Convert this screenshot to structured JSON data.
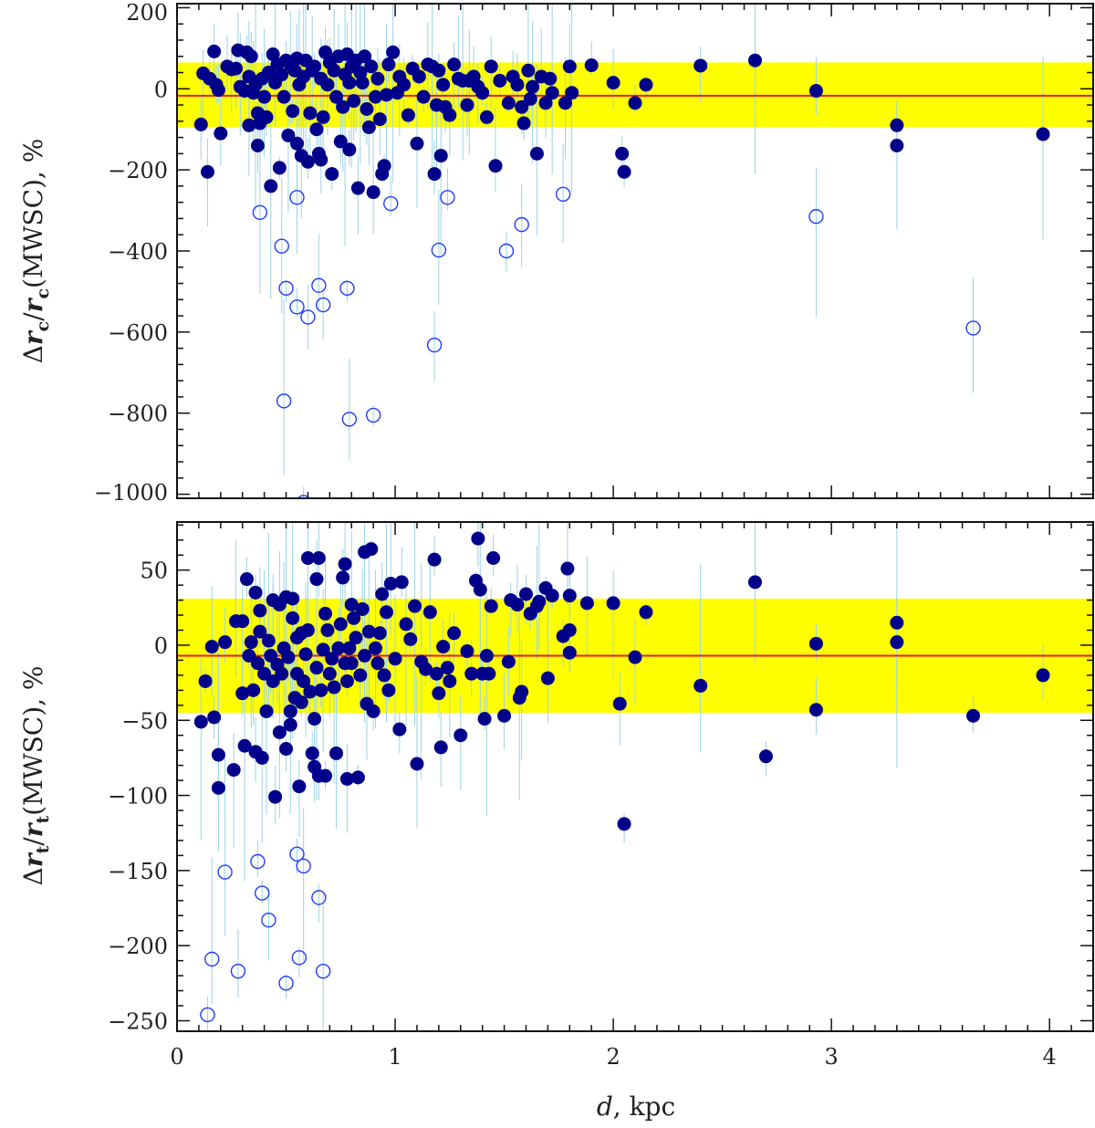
{
  "colors": {
    "band": "#ffff00",
    "mean_line": "#e8192c",
    "filled": "#00008b",
    "open": "#1e3cff",
    "errorbar": "#9cd3e6",
    "axes": "#111111"
  },
  "chart_data": [
    {
      "type": "scatter",
      "panel": "top",
      "ylabel": "Δr_c/r_c(MWSC), %",
      "ylabel_parts": {
        "delta": "Δ",
        "r1": "r",
        "sub1": "c",
        "slash": "/",
        "r2": "r",
        "sub2": "c",
        "rest": "(MWSC), %"
      },
      "xlim": [
        0,
        4.2
      ],
      "ylim": [
        -1010,
        210
      ],
      "y_ticks": [
        200,
        0,
        -200,
        -400,
        -600,
        -800,
        -1000
      ],
      "y_tick_labels": [
        "200",
        "0",
        "−200",
        "−400",
        "−600",
        "−800",
        "−1000"
      ],
      "mean": -17,
      "band": [
        -95,
        65
      ],
      "filled_points": [
        [
          0.11,
          -88
        ],
        [
          0.12,
          38
        ],
        [
          0.14,
          -205
        ],
        [
          0.15,
          25
        ],
        [
          0.17,
          92
        ],
        [
          0.18,
          10
        ],
        [
          0.19,
          -3
        ],
        [
          0.2,
          -110
        ],
        [
          0.23,
          55
        ],
        [
          0.25,
          48
        ],
        [
          0.27,
          50
        ],
        [
          0.28,
          95
        ],
        [
          0.29,
          5
        ],
        [
          0.31,
          -5
        ],
        [
          0.32,
          90
        ],
        [
          0.33,
          -90
        ],
        [
          0.33,
          30
        ],
        [
          0.34,
          80
        ],
        [
          0.35,
          -10
        ],
        [
          0.36,
          10
        ],
        [
          0.37,
          -60
        ],
        [
          0.37,
          -140
        ],
        [
          0.38,
          -85
        ],
        [
          0.39,
          25
        ],
        [
          0.4,
          -20
        ],
        [
          0.41,
          -70
        ],
        [
          0.42,
          40
        ],
        [
          0.43,
          -240
        ],
        [
          0.44,
          85
        ],
        [
          0.45,
          15
        ],
        [
          0.46,
          60
        ],
        [
          0.47,
          -195
        ],
        [
          0.48,
          35
        ],
        [
          0.49,
          -20
        ],
        [
          0.5,
          70
        ],
        [
          0.51,
          -115
        ],
        [
          0.52,
          60
        ],
        [
          0.53,
          -55
        ],
        [
          0.54,
          45
        ],
        [
          0.55,
          75
        ],
        [
          0.55,
          -135
        ],
        [
          0.56,
          10
        ],
        [
          0.57,
          -165
        ],
        [
          0.58,
          30
        ],
        [
          0.59,
          70
        ],
        [
          0.6,
          -180
        ],
        [
          0.61,
          -60
        ],
        [
          0.62,
          45
        ],
        [
          0.63,
          55
        ],
        [
          0.64,
          -100
        ],
        [
          0.65,
          -160
        ],
        [
          0.66,
          25
        ],
        [
          0.66,
          -175
        ],
        [
          0.67,
          -70
        ],
        [
          0.68,
          90
        ],
        [
          0.69,
          10
        ],
        [
          0.7,
          65
        ],
        [
          0.71,
          -210
        ],
        [
          0.72,
          45
        ],
        [
          0.73,
          -20
        ],
        [
          0.74,
          80
        ],
        [
          0.75,
          -130
        ],
        [
          0.76,
          -45
        ],
        [
          0.77,
          35
        ],
        [
          0.78,
          85
        ],
        [
          0.79,
          15
        ],
        [
          0.79,
          -150
        ],
        [
          0.8,
          55
        ],
        [
          0.81,
          -30
        ],
        [
          0.82,
          70
        ],
        [
          0.83,
          -245
        ],
        [
          0.84,
          40
        ],
        [
          0.85,
          15
        ],
        [
          0.86,
          80
        ],
        [
          0.87,
          -50
        ],
        [
          0.88,
          -95
        ],
        [
          0.89,
          55
        ],
        [
          0.9,
          -255
        ],
        [
          0.91,
          -20
        ],
        [
          0.92,
          25
        ],
        [
          0.93,
          -75
        ],
        [
          0.94,
          -210
        ],
        [
          0.95,
          -190
        ],
        [
          0.96,
          -15
        ],
        [
          0.97,
          60
        ],
        [
          0.99,
          90
        ],
        [
          1.01,
          -10
        ],
        [
          1.02,
          30
        ],
        [
          1.04,
          10
        ],
        [
          1.06,
          -65
        ],
        [
          1.08,
          50
        ],
        [
          1.1,
          -135
        ],
        [
          1.11,
          30
        ],
        [
          1.13,
          -20
        ],
        [
          1.15,
          60
        ],
        [
          1.17,
          55
        ],
        [
          1.18,
          -210
        ],
        [
          1.19,
          -40
        ],
        [
          1.2,
          45
        ],
        [
          1.21,
          -165
        ],
        [
          1.22,
          10
        ],
        [
          1.23,
          -45
        ],
        [
          1.25,
          -65
        ],
        [
          1.27,
          60
        ],
        [
          1.29,
          25
        ],
        [
          1.31,
          20
        ],
        [
          1.33,
          -40
        ],
        [
          1.34,
          20
        ],
        [
          1.36,
          30
        ],
        [
          1.38,
          5
        ],
        [
          1.4,
          -10
        ],
        [
          1.42,
          -70
        ],
        [
          1.44,
          55
        ],
        [
          1.46,
          -190
        ],
        [
          1.48,
          20
        ],
        [
          1.52,
          -35
        ],
        [
          1.54,
          30
        ],
        [
          1.56,
          10
        ],
        [
          1.58,
          -45
        ],
        [
          1.59,
          -85
        ],
        [
          1.61,
          45
        ],
        [
          1.62,
          -25
        ],
        [
          1.63,
          5
        ],
        [
          1.65,
          -160
        ],
        [
          1.67,
          30
        ],
        [
          1.69,
          -35
        ],
        [
          1.71,
          25
        ],
        [
          1.72,
          -10
        ],
        [
          1.78,
          -35
        ],
        [
          1.8,
          55
        ],
        [
          1.81,
          -10
        ],
        [
          1.9,
          58
        ],
        [
          2.0,
          15
        ],
        [
          2.04,
          -160
        ],
        [
          2.05,
          -205
        ],
        [
          2.1,
          -35
        ],
        [
          2.15,
          10
        ],
        [
          2.4,
          57
        ],
        [
          2.65,
          70
        ],
        [
          2.93,
          -5
        ],
        [
          3.3,
          -90
        ],
        [
          3.3,
          -140
        ],
        [
          3.97,
          -112
        ]
      ],
      "open_points": [
        [
          0.38,
          -305
        ],
        [
          0.48,
          -388
        ],
        [
          0.5,
          -492
        ],
        [
          0.49,
          -770
        ],
        [
          0.55,
          -268
        ],
        [
          0.55,
          -538
        ],
        [
          0.6,
          -563
        ],
        [
          0.65,
          -485
        ],
        [
          0.67,
          -533
        ],
        [
          0.78,
          -492
        ],
        [
          0.58,
          -1020
        ],
        [
          0.79,
          -815
        ],
        [
          0.9,
          -805
        ],
        [
          0.98,
          -283
        ],
        [
          1.18,
          -632
        ],
        [
          1.2,
          -398
        ],
        [
          1.24,
          -268
        ],
        [
          1.51,
          -400
        ],
        [
          1.58,
          -335
        ],
        [
          1.77,
          -260
        ],
        [
          2.93,
          -315
        ],
        [
          3.65,
          -590
        ]
      ]
    },
    {
      "type": "scatter",
      "panel": "bottom",
      "ylabel": "Δr_t/r_t(MWSC), %",
      "ylabel_parts": {
        "delta": "Δ",
        "r1": "r",
        "sub1": "t",
        "slash": "/",
        "r2": "r",
        "sub2": "t",
        "rest": "(MWSC), %"
      },
      "xlabel_italic": "d",
      "xlabel_rest": ", kpc",
      "xlim": [
        0,
        4.2
      ],
      "ylim": [
        -257,
        82
      ],
      "x_ticks": [
        0,
        1,
        2,
        3,
        4
      ],
      "x_tick_labels": [
        "0",
        "1",
        "2",
        "3",
        "4"
      ],
      "y_ticks": [
        50,
        0,
        -50,
        -100,
        -150,
        -200,
        -250
      ],
      "y_tick_labels": [
        "50",
        "0",
        "−50",
        "−100",
        "−150",
        "−200",
        "−250"
      ],
      "mean": -7,
      "band": [
        -45,
        31
      ],
      "filled_points": [
        [
          0.11,
          -51
        ],
        [
          0.13,
          -24
        ],
        [
          0.16,
          -1
        ],
        [
          0.17,
          -48
        ],
        [
          0.19,
          -73
        ],
        [
          0.19,
          -95
        ],
        [
          0.22,
          2
        ],
        [
          0.26,
          -83
        ],
        [
          0.27,
          16
        ],
        [
          0.3,
          -32
        ],
        [
          0.3,
          16
        ],
        [
          0.31,
          -67
        ],
        [
          0.32,
          44
        ],
        [
          0.33,
          -7
        ],
        [
          0.34,
          2
        ],
        [
          0.35,
          -30
        ],
        [
          0.36,
          35
        ],
        [
          0.36,
          -71
        ],
        [
          0.37,
          -12
        ],
        [
          0.38,
          9
        ],
        [
          0.38,
          23
        ],
        [
          0.39,
          -75
        ],
        [
          0.4,
          -19
        ],
        [
          0.41,
          -44
        ],
        [
          0.42,
          3
        ],
        [
          0.43,
          -7
        ],
        [
          0.44,
          30
        ],
        [
          0.44,
          -24
        ],
        [
          0.45,
          -101
        ],
        [
          0.46,
          -13
        ],
        [
          0.47,
          27
        ],
        [
          0.47,
          -58
        ],
        [
          0.48,
          -19
        ],
        [
          0.49,
          -2
        ],
        [
          0.5,
          -69
        ],
        [
          0.5,
          32
        ],
        [
          0.51,
          -8
        ],
        [
          0.52,
          -44
        ],
        [
          0.52,
          -53
        ],
        [
          0.53,
          18
        ],
        [
          0.53,
          31
        ],
        [
          0.54,
          -35
        ],
        [
          0.55,
          -19
        ],
        [
          0.55,
          5
        ],
        [
          0.56,
          -94
        ],
        [
          0.57,
          -38
        ],
        [
          0.57,
          8
        ],
        [
          0.58,
          -24
        ],
        [
          0.59,
          -6
        ],
        [
          0.6,
          10
        ],
        [
          0.6,
          58
        ],
        [
          0.61,
          -31
        ],
        [
          0.62,
          -72
        ],
        [
          0.63,
          -81
        ],
        [
          0.63,
          -49
        ],
        [
          0.64,
          -15
        ],
        [
          0.64,
          44
        ],
        [
          0.65,
          -87
        ],
        [
          0.65,
          58
        ],
        [
          0.66,
          -30
        ],
        [
          0.67,
          -3
        ],
        [
          0.68,
          -87
        ],
        [
          0.68,
          21
        ],
        [
          0.69,
          10
        ],
        [
          0.7,
          -19
        ],
        [
          0.71,
          -9
        ],
        [
          0.72,
          -28
        ],
        [
          0.73,
          -72
        ],
        [
          0.74,
          -2
        ],
        [
          0.75,
          14
        ],
        [
          0.76,
          45
        ],
        [
          0.77,
          -12
        ],
        [
          0.77,
          54
        ],
        [
          0.78,
          -89
        ],
        [
          0.78,
          -24
        ],
        [
          0.79,
          -2
        ],
        [
          0.8,
          27
        ],
        [
          0.8,
          -12
        ],
        [
          0.81,
          18
        ],
        [
          0.82,
          5
        ],
        [
          0.83,
          -88
        ],
        [
          0.84,
          -20
        ],
        [
          0.85,
          24
        ],
        [
          0.86,
          -7
        ],
        [
          0.86,
          62
        ],
        [
          0.87,
          -39
        ],
        [
          0.88,
          9
        ],
        [
          0.89,
          64
        ],
        [
          0.9,
          -44
        ],
        [
          0.91,
          -2
        ],
        [
          0.92,
          -12
        ],
        [
          0.93,
          8
        ],
        [
          0.94,
          34
        ],
        [
          0.95,
          -20
        ],
        [
          0.96,
          22
        ],
        [
          0.97,
          -30
        ],
        [
          0.98,
          41
        ],
        [
          1.0,
          -9
        ],
        [
          1.02,
          -56
        ],
        [
          1.03,
          42
        ],
        [
          1.05,
          14
        ],
        [
          1.07,
          4
        ],
        [
          1.09,
          26
        ],
        [
          1.1,
          -79
        ],
        [
          1.12,
          -11
        ],
        [
          1.14,
          -16
        ],
        [
          1.16,
          22
        ],
        [
          1.18,
          57
        ],
        [
          1.19,
          -19
        ],
        [
          1.2,
          -32
        ],
        [
          1.21,
          -68
        ],
        [
          1.22,
          -1
        ],
        [
          1.24,
          -15
        ],
        [
          1.25,
          -24
        ],
        [
          1.27,
          8
        ],
        [
          1.3,
          -60
        ],
        [
          1.33,
          -4
        ],
        [
          1.35,
          -19
        ],
        [
          1.37,
          43
        ],
        [
          1.38,
          71
        ],
        [
          1.39,
          37
        ],
        [
          1.4,
          -19
        ],
        [
          1.41,
          -49
        ],
        [
          1.42,
          -7
        ],
        [
          1.43,
          -19
        ],
        [
          1.44,
          26
        ],
        [
          1.45,
          58
        ],
        [
          1.5,
          -47
        ],
        [
          1.52,
          -11
        ],
        [
          1.53,
          30
        ],
        [
          1.56,
          27
        ],
        [
          1.57,
          -35
        ],
        [
          1.58,
          -31
        ],
        [
          1.6,
          34
        ],
        [
          1.62,
          21
        ],
        [
          1.65,
          26
        ],
        [
          1.66,
          29
        ],
        [
          1.69,
          38
        ],
        [
          1.7,
          -22
        ],
        [
          1.72,
          33
        ],
        [
          1.77,
          6
        ],
        [
          1.79,
          51
        ],
        [
          1.8,
          -5
        ],
        [
          1.8,
          10
        ],
        [
          1.8,
          33
        ],
        [
          1.88,
          28
        ],
        [
          2.0,
          28
        ],
        [
          2.03,
          -39
        ],
        [
          2.05,
          -119
        ],
        [
          2.1,
          -8
        ],
        [
          2.15,
          22
        ],
        [
          2.4,
          -27
        ],
        [
          2.65,
          42
        ],
        [
          2.7,
          -74
        ],
        [
          2.93,
          1
        ],
        [
          2.93,
          -43
        ],
        [
          3.3,
          15
        ],
        [
          3.3,
          2
        ],
        [
          3.65,
          -47
        ],
        [
          3.97,
          -20
        ]
      ],
      "open_points": [
        [
          0.14,
          -246
        ],
        [
          0.16,
          -209
        ],
        [
          0.22,
          -151
        ],
        [
          0.28,
          -217
        ],
        [
          0.37,
          -144
        ],
        [
          0.39,
          -165
        ],
        [
          0.42,
          -183
        ],
        [
          0.5,
          -225
        ],
        [
          0.55,
          -139
        ],
        [
          0.56,
          -208
        ],
        [
          0.58,
          -147
        ],
        [
          0.65,
          -168
        ],
        [
          0.67,
          -217
        ]
      ]
    }
  ]
}
